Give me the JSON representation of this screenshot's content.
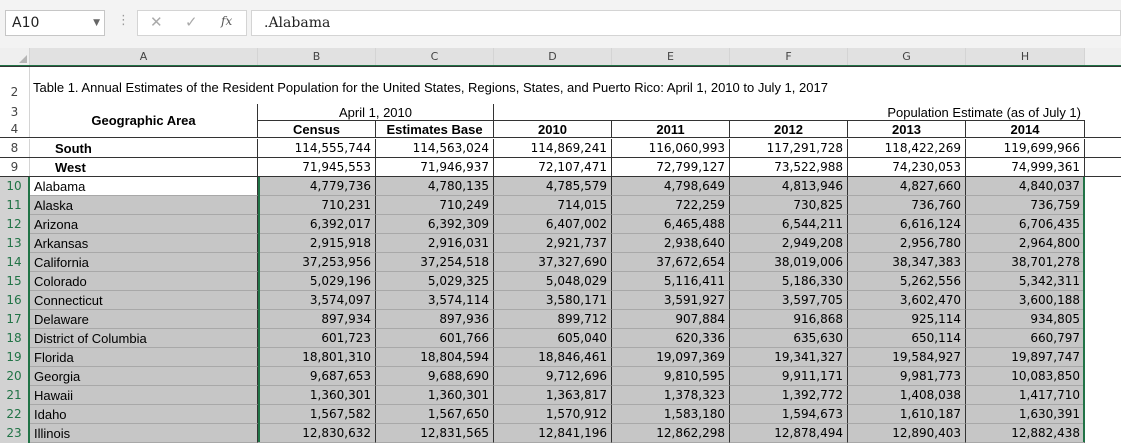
{
  "formula_bar": {
    "name_box": "A10",
    "formula": ".Alabama",
    "cancel_icon": "✕",
    "enter_icon": "✓",
    "fx_icon": "fx"
  },
  "columns": [
    "A",
    "B",
    "C",
    "D",
    "E",
    "F",
    "G",
    "H"
  ],
  "title_row": {
    "row_num": "2",
    "text": "Table 1. Annual Estimates of the Resident Population for the United States, Regions, States, and Puerto Rico: April 1, 2010 to July 1, 2017"
  },
  "header": {
    "row3_num": "3",
    "row4_num": "4",
    "geo_area": "Geographic Area",
    "april_group": "April 1, 2010",
    "estimate_group": "Population Estimate (as of July 1)",
    "census": "Census",
    "estimates_base": "Estimates Base",
    "years": [
      "2010",
      "2011",
      "2012",
      "2013",
      "2014"
    ]
  },
  "region_rows": [
    {
      "row": "8",
      "name": "South",
      "values": [
        "114,555,744",
        "114,563,024",
        "114,869,241",
        "116,060,993",
        "117,291,728",
        "118,422,269",
        "119,699,966"
      ]
    },
    {
      "row": "9",
      "name": "West",
      "values": [
        "71,945,553",
        "71,946,937",
        "72,107,471",
        "72,799,127",
        "73,522,988",
        "74,230,053",
        "74,999,361"
      ]
    }
  ],
  "state_rows": [
    {
      "row": "10",
      "name": "Alabama",
      "values": [
        "4,779,736",
        "4,780,135",
        "4,785,579",
        "4,798,649",
        "4,813,946",
        "4,827,660",
        "4,840,037"
      ]
    },
    {
      "row": "11",
      "name": "Alaska",
      "values": [
        "710,231",
        "710,249",
        "714,015",
        "722,259",
        "730,825",
        "736,760",
        "736,759"
      ]
    },
    {
      "row": "12",
      "name": "Arizona",
      "values": [
        "6,392,017",
        "6,392,309",
        "6,407,002",
        "6,465,488",
        "6,544,211",
        "6,616,124",
        "6,706,435"
      ]
    },
    {
      "row": "13",
      "name": "Arkansas",
      "values": [
        "2,915,918",
        "2,916,031",
        "2,921,737",
        "2,938,640",
        "2,949,208",
        "2,956,780",
        "2,964,800"
      ]
    },
    {
      "row": "14",
      "name": "California",
      "values": [
        "37,253,956",
        "37,254,518",
        "37,327,690",
        "37,672,654",
        "38,019,006",
        "38,347,383",
        "38,701,278"
      ]
    },
    {
      "row": "15",
      "name": "Colorado",
      "values": [
        "5,029,196",
        "5,029,325",
        "5,048,029",
        "5,116,411",
        "5,186,330",
        "5,262,556",
        "5,342,311"
      ]
    },
    {
      "row": "16",
      "name": "Connecticut",
      "values": [
        "3,574,097",
        "3,574,114",
        "3,580,171",
        "3,591,927",
        "3,597,705",
        "3,602,470",
        "3,600,188"
      ]
    },
    {
      "row": "17",
      "name": "Delaware",
      "values": [
        "897,934",
        "897,936",
        "899,712",
        "907,884",
        "916,868",
        "925,114",
        "934,805"
      ]
    },
    {
      "row": "18",
      "name": "District of Columbia",
      "values": [
        "601,723",
        "601,766",
        "605,040",
        "620,336",
        "635,630",
        "650,114",
        "660,797"
      ]
    },
    {
      "row": "19",
      "name": "Florida",
      "values": [
        "18,801,310",
        "18,804,594",
        "18,846,461",
        "19,097,369",
        "19,341,327",
        "19,584,927",
        "19,897,747"
      ]
    },
    {
      "row": "20",
      "name": "Georgia",
      "values": [
        "9,687,653",
        "9,688,690",
        "9,712,696",
        "9,810,595",
        "9,911,171",
        "9,981,773",
        "10,083,850"
      ]
    },
    {
      "row": "21",
      "name": "Hawaii",
      "values": [
        "1,360,301",
        "1,360,301",
        "1,363,817",
        "1,378,323",
        "1,392,772",
        "1,408,038",
        "1,417,710"
      ]
    },
    {
      "row": "22",
      "name": "Idaho",
      "values": [
        "1,567,582",
        "1,567,650",
        "1,570,912",
        "1,583,180",
        "1,594,673",
        "1,610,187",
        "1,630,391"
      ]
    },
    {
      "row": "23",
      "name": "Illinois",
      "values": [
        "12,830,632",
        "12,831,565",
        "12,841,196",
        "12,862,298",
        "12,878,494",
        "12,890,403",
        "12,882,438"
      ]
    }
  ],
  "colors": {
    "accent": "#217346",
    "selection_fill": "#c6c6c6",
    "header_bg": "#e1e1e1"
  }
}
